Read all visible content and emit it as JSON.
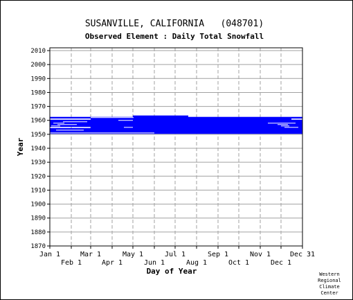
{
  "chart_data": {
    "type": "timeline",
    "title": "SUSANVILLE, CALIFORNIA   (048701)",
    "subtitle": "Observed Element : Daily Total Snowfall",
    "xlabel": "Day of Year",
    "ylabel": "Year",
    "ylim": [
      1870,
      2012
    ],
    "y_ticks": [
      1870,
      1880,
      1890,
      1900,
      1910,
      1920,
      1930,
      1940,
      1950,
      1960,
      1970,
      1980,
      1990,
      2000,
      2010
    ],
    "xlim": [
      1,
      366
    ],
    "x_ticks_top_row": [
      {
        "label": "Jan 1",
        "day": 1
      },
      {
        "label": "Mar 1",
        "day": 60
      },
      {
        "label": "May 1",
        "day": 121
      },
      {
        "label": "Jul 1",
        "day": 182
      },
      {
        "label": "Sep 1",
        "day": 244
      },
      {
        "label": "Nov 1",
        "day": 305
      },
      {
        "label": "Dec 31",
        "day": 366
      }
    ],
    "x_ticks_bottom_row": [
      {
        "label": "Feb 1",
        "day": 32
      },
      {
        "label": "Apr 1",
        "day": 91
      },
      {
        "label": "Jun 1",
        "day": 152
      },
      {
        "label": "Aug 1",
        "day": 213
      },
      {
        "label": "Oct 1",
        "day": 274
      },
      {
        "label": "Dec 1",
        "day": 335
      }
    ],
    "grid": true,
    "series_color": "#0000ff",
    "data_coverage": [
      {
        "year": 1951,
        "start_day": 1,
        "end_day": 366
      },
      {
        "year": 1952,
        "start_day": 1,
        "end_day": 366
      },
      {
        "year": 1953,
        "start_day": 1,
        "end_day": 366
      },
      {
        "year": 1954,
        "start_day": 1,
        "end_day": 366
      },
      {
        "year": 1955,
        "start_day": 60,
        "end_day": 366
      },
      {
        "year": 1956,
        "start_day": 1,
        "end_day": 366
      },
      {
        "year": 1957,
        "start_day": 1,
        "end_day": 366
      },
      {
        "year": 1958,
        "start_day": 1,
        "end_day": 366
      },
      {
        "year": 1959,
        "start_day": 1,
        "end_day": 366
      },
      {
        "year": 1960,
        "start_day": 1,
        "end_day": 366
      },
      {
        "year": 1961,
        "start_day": 60,
        "end_day": 350
      },
      {
        "year": 1962,
        "start_day": 1,
        "end_day": 366
      },
      {
        "year": 1963,
        "start_day": 121,
        "end_day": 201
      }
    ],
    "coverage_gaps": [
      {
        "year": 1951,
        "start_day": 1,
        "end_day": 152
      },
      {
        "year": 1953,
        "start_day": 10,
        "end_day": 50
      },
      {
        "year": 1955,
        "start_day": 108,
        "end_day": 121
      },
      {
        "year": 1955,
        "start_day": 340,
        "end_day": 360
      },
      {
        "year": 1956,
        "start_day": 3,
        "end_day": 16
      },
      {
        "year": 1956,
        "start_day": 335,
        "end_day": 347
      },
      {
        "year": 1957,
        "start_day": 12,
        "end_day": 40
      },
      {
        "year": 1957,
        "start_day": 330,
        "end_day": 345
      },
      {
        "year": 1958,
        "start_day": 6,
        "end_day": 22
      },
      {
        "year": 1958,
        "start_day": 316,
        "end_day": 356
      },
      {
        "year": 1959,
        "start_day": 20,
        "end_day": 55
      },
      {
        "year": 1960,
        "start_day": 100,
        "end_day": 121
      },
      {
        "year": 1961,
        "start_day": 1,
        "end_day": 58
      },
      {
        "year": 1962,
        "start_day": 60,
        "end_day": 122
      }
    ]
  },
  "credit": [
    "Western",
    "Regional",
    "Climate",
    "Center"
  ]
}
